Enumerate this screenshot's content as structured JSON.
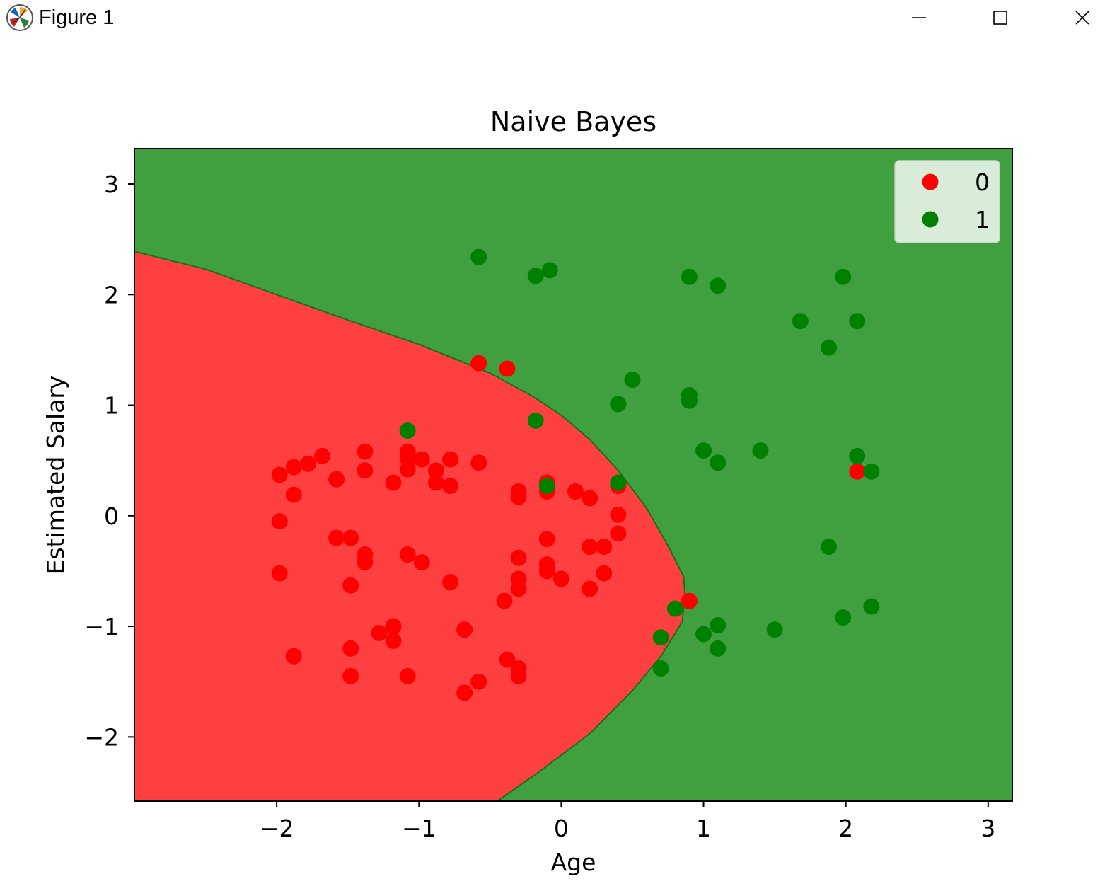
{
  "window": {
    "title": "Figure 1",
    "icons": {
      "app": "matplotlib-logo-icon",
      "minimize": "minimize-icon",
      "maximize": "maximize-icon",
      "close": "close-icon"
    }
  },
  "chart_data": {
    "type": "scatter",
    "title": "Naive Bayes",
    "xlabel": "Age",
    "ylabel": "Estimated Salary",
    "xlim": [
      -3.0,
      3.17
    ],
    "ylim": [
      -2.58,
      3.32
    ],
    "xticks": [
      -2,
      -1,
      0,
      1,
      2,
      3
    ],
    "yticks": [
      -2,
      -1,
      0,
      1,
      2,
      3
    ],
    "xtick_labels": [
      "−2",
      "−1",
      "0",
      "1",
      "2",
      "3"
    ],
    "ytick_labels": [
      "−2",
      "−1",
      "0",
      "1",
      "2",
      "3"
    ],
    "grid": false,
    "legend_position": "top-right",
    "background_regions": [
      {
        "class": "0",
        "color": "#ff4040",
        "shape": "region left of decision boundary"
      },
      {
        "class": "1",
        "color": "#40a040",
        "shape": "region right of decision boundary"
      }
    ],
    "decision_boundary": [
      [
        -3.0,
        2.39
      ],
      [
        -2.5,
        2.23
      ],
      [
        -2.0,
        2.0
      ],
      [
        -1.5,
        1.77
      ],
      [
        -1.0,
        1.55
      ],
      [
        -0.5,
        1.29
      ],
      [
        -0.2,
        1.08
      ],
      [
        0.0,
        0.91
      ],
      [
        0.2,
        0.69
      ],
      [
        0.4,
        0.41
      ],
      [
        0.6,
        0.07
      ],
      [
        0.75,
        -0.27
      ],
      [
        0.86,
        -0.55
      ],
      [
        0.87,
        -0.72
      ],
      [
        0.85,
        -0.96
      ],
      [
        0.7,
        -1.27
      ],
      [
        0.5,
        -1.58
      ],
      [
        0.2,
        -1.97
      ],
      [
        -0.15,
        -2.31
      ],
      [
        -0.45,
        -2.58
      ]
    ],
    "series": [
      {
        "name": "0",
        "color": "#ff0000",
        "points": [
          [
            -1.98,
            0.37
          ],
          [
            -1.88,
            0.44
          ],
          [
            -1.78,
            0.47
          ],
          [
            -1.68,
            0.54
          ],
          [
            -1.88,
            0.19
          ],
          [
            -1.58,
            0.33
          ],
          [
            -1.38,
            0.58
          ],
          [
            -1.38,
            0.41
          ],
          [
            -1.18,
            0.3
          ],
          [
            -1.08,
            0.58
          ],
          [
            -1.08,
            0.52
          ],
          [
            -1.08,
            0.42
          ],
          [
            -0.98,
            0.51
          ],
          [
            -0.88,
            0.41
          ],
          [
            -0.88,
            0.3
          ],
          [
            -0.78,
            0.51
          ],
          [
            -0.78,
            0.27
          ],
          [
            -0.58,
            0.48
          ],
          [
            -0.58,
            1.38
          ],
          [
            -0.38,
            1.33
          ],
          [
            -0.3,
            0.22
          ],
          [
            -0.3,
            0.17
          ],
          [
            -0.1,
            0.3
          ],
          [
            -0.1,
            0.22
          ],
          [
            0.1,
            0.22
          ],
          [
            0.2,
            0.16
          ],
          [
            0.4,
            0.27
          ],
          [
            0.4,
            0.01
          ],
          [
            -1.98,
            -0.05
          ],
          [
            -1.58,
            -0.2
          ],
          [
            -1.48,
            -0.2
          ],
          [
            -1.38,
            -0.35
          ],
          [
            -1.38,
            -0.42
          ],
          [
            -1.08,
            -0.35
          ],
          [
            -0.98,
            -0.42
          ],
          [
            -1.98,
            -0.52
          ],
          [
            -1.48,
            -0.63
          ],
          [
            -0.78,
            -0.6
          ],
          [
            -0.3,
            -0.38
          ],
          [
            -0.3,
            -0.57
          ],
          [
            -0.3,
            -0.66
          ],
          [
            -0.1,
            -0.44
          ],
          [
            -0.1,
            -0.5
          ],
          [
            0.0,
            -0.57
          ],
          [
            -0.1,
            -0.21
          ],
          [
            0.2,
            -0.28
          ],
          [
            0.3,
            -0.28
          ],
          [
            0.4,
            -0.16
          ],
          [
            0.3,
            -0.52
          ],
          [
            0.2,
            -0.66
          ],
          [
            -0.4,
            -0.77
          ],
          [
            0.9,
            -0.77
          ],
          [
            -1.28,
            -1.06
          ],
          [
            -1.18,
            -1.0
          ],
          [
            -1.18,
            -1.13
          ],
          [
            -0.68,
            -1.03
          ],
          [
            -1.88,
            -1.27
          ],
          [
            -1.48,
            -1.2
          ],
          [
            -1.48,
            -1.45
          ],
          [
            -1.08,
            -1.45
          ],
          [
            -0.38,
            -1.3
          ],
          [
            -0.3,
            -1.38
          ],
          [
            -0.3,
            -1.45
          ],
          [
            -0.58,
            -1.5
          ],
          [
            -0.68,
            -1.6
          ],
          [
            2.08,
            0.4
          ]
        ]
      },
      {
        "name": "1",
        "color": "#008000",
        "points": [
          [
            -0.58,
            2.34
          ],
          [
            -0.18,
            2.17
          ],
          [
            -0.08,
            2.22
          ],
          [
            0.9,
            2.16
          ],
          [
            1.1,
            2.08
          ],
          [
            1.98,
            2.16
          ],
          [
            1.68,
            1.76
          ],
          [
            2.08,
            1.76
          ],
          [
            1.88,
            1.52
          ],
          [
            0.5,
            1.23
          ],
          [
            0.4,
            1.01
          ],
          [
            0.9,
            1.09
          ],
          [
            0.9,
            1.04
          ],
          [
            -1.08,
            0.77
          ],
          [
            -0.18,
            0.86
          ],
          [
            1.0,
            0.59
          ],
          [
            1.1,
            0.48
          ],
          [
            1.4,
            0.59
          ],
          [
            2.08,
            0.54
          ],
          [
            2.18,
            0.4
          ],
          [
            -0.1,
            0.27
          ],
          [
            0.4,
            0.3
          ],
          [
            1.88,
            -0.28
          ],
          [
            0.8,
            -0.84
          ],
          [
            0.7,
            -1.1
          ],
          [
            1.0,
            -1.07
          ],
          [
            1.1,
            -0.99
          ],
          [
            1.1,
            -1.2
          ],
          [
            1.5,
            -1.03
          ],
          [
            1.98,
            -0.92
          ],
          [
            2.18,
            -0.82
          ],
          [
            0.7,
            -1.38
          ]
        ]
      }
    ]
  }
}
